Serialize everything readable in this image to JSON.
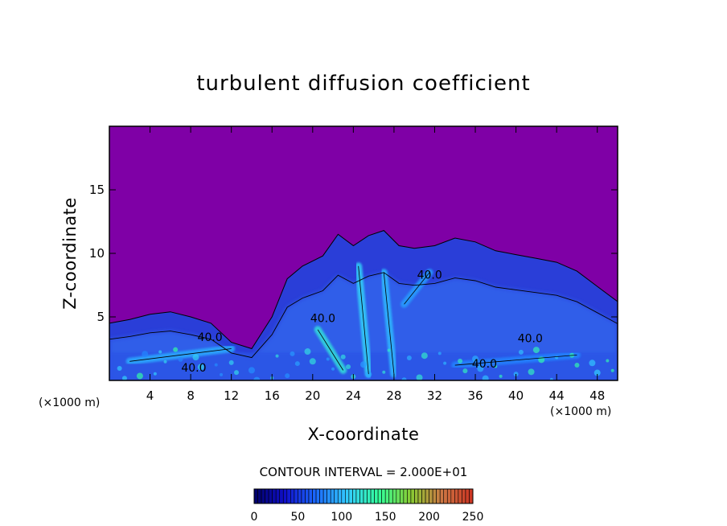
{
  "chart_data": {
    "type": "heatmap",
    "title": "turbulent diffusion coefficient",
    "xlabel": "X-coordinate",
    "ylabel": "Z-coordinate",
    "x_unit": "(×1000 m)",
    "y_unit": "(×1000 m)",
    "xlim": [
      0,
      50
    ],
    "ylim": [
      0,
      20
    ],
    "x_ticks": [
      4,
      8,
      12,
      16,
      20,
      24,
      28,
      32,
      36,
      40,
      44,
      48
    ],
    "y_ticks": [
      5,
      10,
      15
    ],
    "contour_interval_text": "CONTOUR INTERVAL = 2.000E+01",
    "contour_labels": [
      {
        "text": "40.0",
        "x": 21.0,
        "z": 4.6
      },
      {
        "text": "40.0",
        "x": 31.5,
        "z": 8.0
      },
      {
        "text": "40.0",
        "x": 41.4,
        "z": 3.0
      },
      {
        "text": "40.0",
        "x": 36.9,
        "z": 1.0
      },
      {
        "text": "40.0",
        "x": 8.3,
        "z": 0.7
      },
      {
        "text": "40.0",
        "x": 9.9,
        "z": 3.1
      }
    ],
    "colorbar": {
      "range": [
        0,
        250
      ],
      "ticks": [
        0,
        50,
        100,
        150,
        200,
        250
      ],
      "tick_labels": [
        "0",
        "50",
        "100",
        "150",
        "200",
        "250"
      ],
      "colors": [
        "#000066",
        "#1010cc",
        "#1c6cff",
        "#33ccff",
        "#33ff99",
        "#88cc33",
        "#cc7744",
        "#cc3322"
      ]
    },
    "field": {
      "background_value": 0,
      "background_color": "#7f00a6",
      "cloud_boundary": [
        [
          0,
          4.5
        ],
        [
          2,
          4.8
        ],
        [
          4,
          5.2
        ],
        [
          6,
          5.4
        ],
        [
          8,
          5.0
        ],
        [
          10,
          4.5
        ],
        [
          12,
          3.0
        ],
        [
          14,
          2.5
        ],
        [
          16,
          5.0
        ],
        [
          17.5,
          8.0
        ],
        [
          19,
          9.0
        ],
        [
          21,
          9.8
        ],
        [
          22.5,
          11.5
        ],
        [
          24,
          10.6
        ],
        [
          25.5,
          11.4
        ],
        [
          27,
          11.8
        ],
        [
          28.5,
          10.6
        ],
        [
          30,
          10.4
        ],
        [
          32,
          10.6
        ],
        [
          34,
          11.2
        ],
        [
          36,
          10.9
        ],
        [
          38,
          10.2
        ],
        [
          40,
          9.9
        ],
        [
          42,
          9.6
        ],
        [
          44,
          9.3
        ],
        [
          46,
          8.6
        ],
        [
          48,
          7.4
        ],
        [
          49,
          6.8
        ],
        [
          50,
          6.2
        ]
      ],
      "high_value_streaks": [
        {
          "x": [
            20.5,
            23.0
          ],
          "z": [
            4.0,
            0.8
          ],
          "value": 120
        },
        {
          "x": [
            24.5,
            25.5
          ],
          "z": [
            9.0,
            0.5
          ],
          "value": 110
        },
        {
          "x": [
            27.0,
            28.0
          ],
          "z": [
            8.5,
            0.5
          ],
          "value": 100
        },
        {
          "x": [
            29.0,
            31.5
          ],
          "z": [
            6.0,
            8.5
          ],
          "value": 90
        },
        {
          "x": [
            34.0,
            46.0
          ],
          "z": [
            1.2,
            2.0
          ],
          "value": 80
        },
        {
          "x": [
            2.0,
            12.0
          ],
          "z": [
            1.5,
            2.5
          ],
          "value": 95
        }
      ]
    }
  }
}
